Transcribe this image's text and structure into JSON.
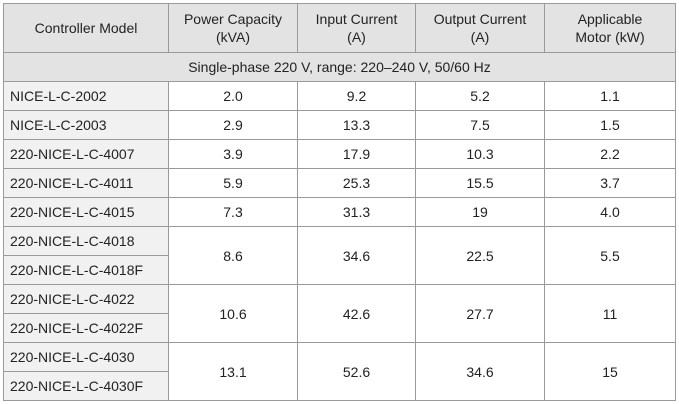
{
  "headers": {
    "model": "Controller Model",
    "power": [
      "Power Capacity",
      "(kVA)"
    ],
    "input": [
      "Input Current",
      "(A)"
    ],
    "output": [
      "Output Current",
      "(A)"
    ],
    "motor": [
      "Applicable",
      "Motor (kW)"
    ]
  },
  "section_label": "Single-phase 220 V, range: 220–240 V, 50/60 Hz",
  "rows": [
    {
      "models": [
        "NICE-L-C-2002"
      ],
      "power": "2.0",
      "input": "9.2",
      "output": "5.2",
      "motor": "1.1"
    },
    {
      "models": [
        "NICE-L-C-2003"
      ],
      "power": "2.9",
      "input": "13.3",
      "output": "7.5",
      "motor": "1.5"
    },
    {
      "models": [
        "220-NICE-L-C-4007"
      ],
      "power": "3.9",
      "input": "17.9",
      "output": "10.3",
      "motor": "2.2"
    },
    {
      "models": [
        "220-NICE-L-C-4011"
      ],
      "power": "5.9",
      "input": "25.3",
      "output": "15.5",
      "motor": "3.7"
    },
    {
      "models": [
        "220-NICE-L-C-4015"
      ],
      "power": "7.3",
      "input": "31.3",
      "output": "19",
      "motor": "4.0"
    },
    {
      "models": [
        "220-NICE-L-C-4018",
        "220-NICE-L-C-4018F"
      ],
      "power": "8.6",
      "input": "34.6",
      "output": "22.5",
      "motor": "5.5"
    },
    {
      "models": [
        "220-NICE-L-C-4022",
        "220-NICE-L-C-4022F"
      ],
      "power": "10.6",
      "input": "42.6",
      "output": "27.7",
      "motor": "11"
    },
    {
      "models": [
        "220-NICE-L-C-4030",
        "220-NICE-L-C-4030F"
      ],
      "power": "13.1",
      "input": "52.6",
      "output": "34.6",
      "motor": "15"
    }
  ]
}
